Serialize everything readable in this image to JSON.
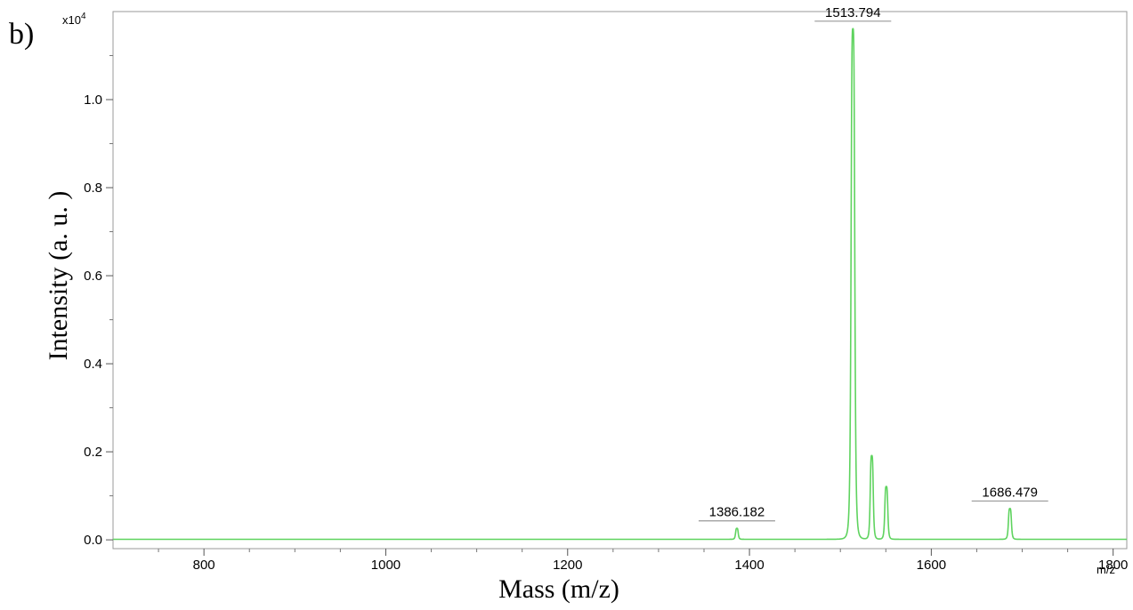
{
  "panel_label": "b)",
  "chart_data": {
    "type": "line",
    "xlabel": "Mass (m/z)",
    "ylabel": "Intensity (a. u. )",
    "x_unit_label": "m/z",
    "y_scale": {
      "prefix": "x10",
      "exponent": "4"
    },
    "xlim": [
      700,
      1815
    ],
    "ylim": [
      -0.02,
      1.2
    ],
    "x_ticks": [
      800,
      1000,
      1200,
      1400,
      1600,
      1800
    ],
    "y_ticks": [
      0.0,
      0.2,
      0.4,
      0.6,
      0.8,
      1.0
    ],
    "x_tick_labels": [
      "800",
      "1000",
      "1200",
      "1400",
      "1600",
      "1800"
    ],
    "y_tick_labels": [
      "0.0",
      "0.2",
      "0.4",
      "0.6",
      "0.8",
      "1.0"
    ],
    "line_color": "#5fd35f",
    "peaks": [
      {
        "mz": 1386.182,
        "intensity": 0.025,
        "width": 1.6,
        "label": "1386.182"
      },
      {
        "mz": 1513.794,
        "intensity": 1.16,
        "width": 2.2,
        "label": "1513.794"
      },
      {
        "mz": 1534.5,
        "intensity": 0.19,
        "width": 1.8,
        "label": ""
      },
      {
        "mz": 1550.5,
        "intensity": 0.12,
        "width": 1.8,
        "label": ""
      },
      {
        "mz": 1686.479,
        "intensity": 0.07,
        "width": 1.8,
        "label": "1686.479"
      }
    ]
  }
}
